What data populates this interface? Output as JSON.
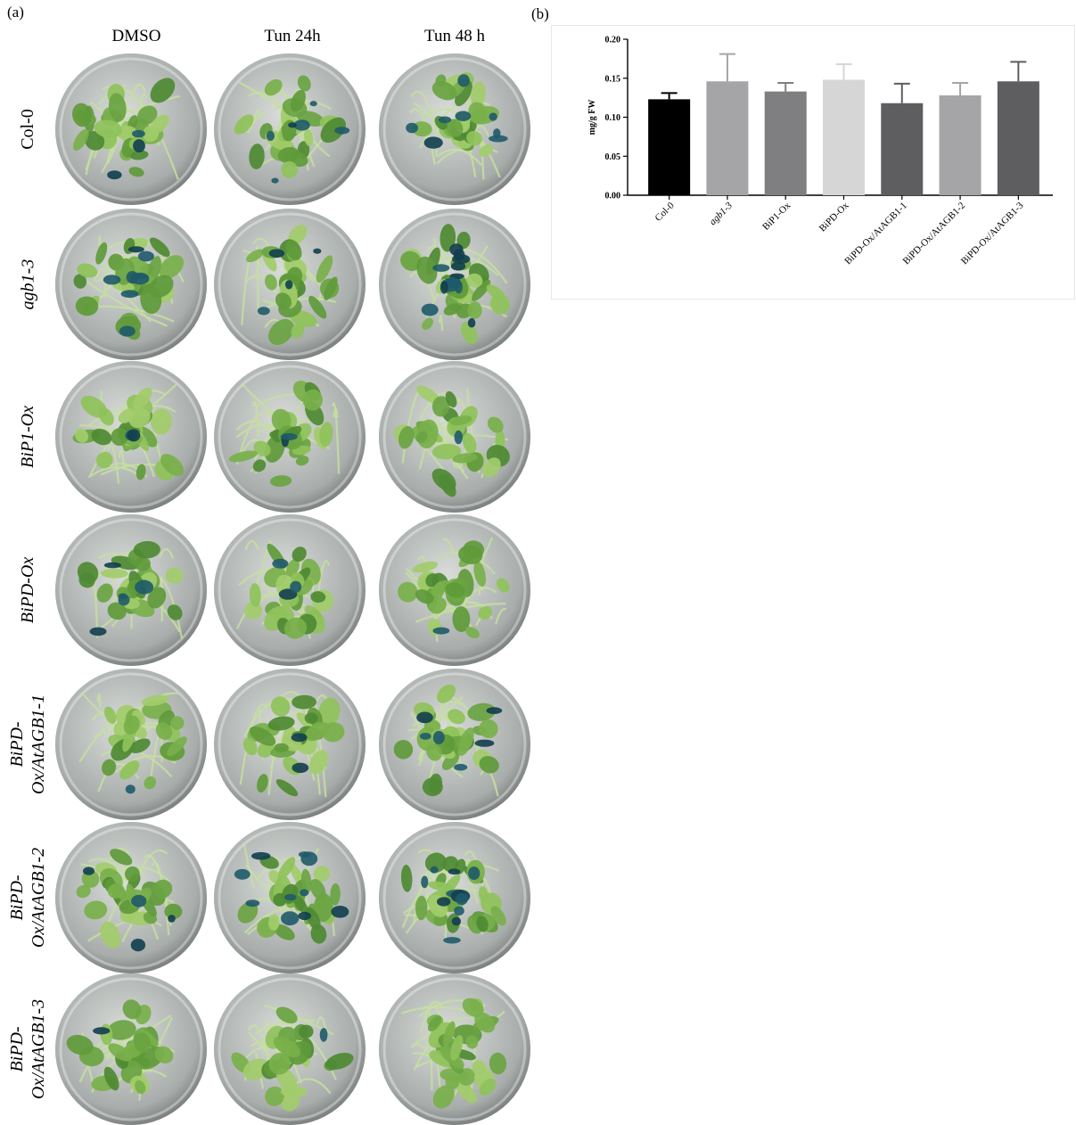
{
  "panel_a": {
    "label": "(a)",
    "columns": [
      "DMSO",
      "Tun 24h",
      "Tun 48 h"
    ],
    "rows": [
      {
        "label": "Col-0",
        "italic": false,
        "stain": [
          0.15,
          0.35,
          0.45
        ]
      },
      {
        "label": "agb1-3",
        "italic": true,
        "stain": [
          0.45,
          0.2,
          0.85
        ]
      },
      {
        "label": "BiP1-Ox",
        "italic": true,
        "stain": [
          0.1,
          0.1,
          0.05
        ]
      },
      {
        "label": "BiPD-Ox",
        "italic": true,
        "stain": [
          0.3,
          0.15,
          0.05
        ]
      },
      {
        "label": "BiPD-Ox/AtAGB1-1",
        "label_lines": [
          "BiPD-",
          "Ox/AtAGB1-1"
        ],
        "italic": true,
        "stain": [
          0.05,
          0.1,
          0.35
        ]
      },
      {
        "label": "BiPD-Ox/AtAGB1-2",
        "label_lines": [
          "BiPD-",
          "Ox/AtAGB1-2"
        ],
        "italic": true,
        "stain": [
          0.2,
          0.55,
          0.6
        ]
      },
      {
        "label": "BiPD-Ox/AtAGB1-3",
        "label_lines": [
          "BiPD-",
          "Ox/AtAGB1-3"
        ],
        "italic": true,
        "stain": [
          0.05,
          0.05,
          0.02
        ]
      }
    ]
  },
  "panel_b": {
    "label": "(b)",
    "chart_data": {
      "type": "bar",
      "ylabel": "mg/g FW",
      "xlabel": "",
      "ylim": [
        0,
        0.2
      ],
      "yticks": [
        "0.00",
        "0.05",
        "0.10",
        "0.15",
        "0.20"
      ],
      "categories": [
        "Col-0",
        "agb1-3",
        "BiP1-Ox",
        "BiPD-Ox",
        "BiPD-Ox/AtAGB1-1",
        "BiPD-Ox/AtAGB1-2",
        "BiPD-Ox/AtAGB1-3"
      ],
      "italic_categories": [
        "agb1-3"
      ],
      "values": [
        0.123,
        0.146,
        0.133,
        0.148,
        0.118,
        0.128,
        0.146
      ],
      "errors": [
        0.008,
        0.035,
        0.011,
        0.02,
        0.025,
        0.016,
        0.025
      ],
      "colors": [
        "#000000",
        "#a5a5a8",
        "#7f7f81",
        "#d6d6d6",
        "#5e5e60",
        "#a5a5a8",
        "#5e5e60"
      ],
      "grid": false,
      "legend": "none"
    }
  }
}
